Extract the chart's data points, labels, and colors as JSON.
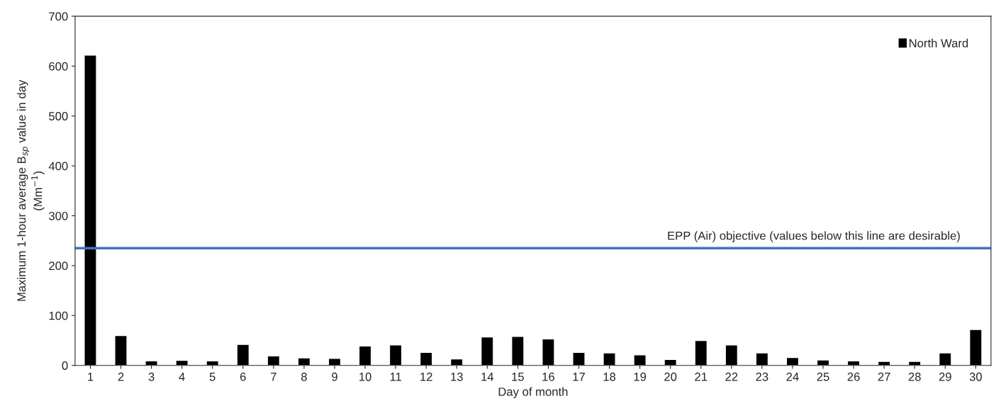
{
  "chart_data": {
    "type": "bar",
    "xlabel": "Day of month",
    "ylabel": "Maximum 1-hour average B$_{sp}$ value in day\n(Mm$^{−1}$)",
    "categories": [
      "1",
      "2",
      "3",
      "4",
      "5",
      "6",
      "7",
      "8",
      "9",
      "10",
      "11",
      "12",
      "13",
      "14",
      "15",
      "16",
      "17",
      "18",
      "19",
      "20",
      "21",
      "22",
      "23",
      "24",
      "25",
      "26",
      "27",
      "28",
      "29",
      "30"
    ],
    "series": [
      {
        "name": "North Ward",
        "color": "#000000",
        "values": [
          622,
          60,
          9,
          10,
          9,
          42,
          19,
          15,
          14,
          39,
          41,
          26,
          13,
          57,
          58,
          53,
          26,
          25,
          21,
          12,
          50,
          41,
          25,
          16,
          11,
          9,
          8,
          8,
          25,
          72
        ]
      }
    ],
    "ylim": [
      0,
      700
    ],
    "yticks": [
      0,
      100,
      200,
      300,
      400,
      500,
      600,
      700
    ],
    "ref_lines": [
      {
        "axis": "y",
        "value": 235,
        "label": "EPP (Air) objective (values below this line are desirable)",
        "color": "#4472c4"
      }
    ],
    "grid": false,
    "legend": "top right"
  }
}
